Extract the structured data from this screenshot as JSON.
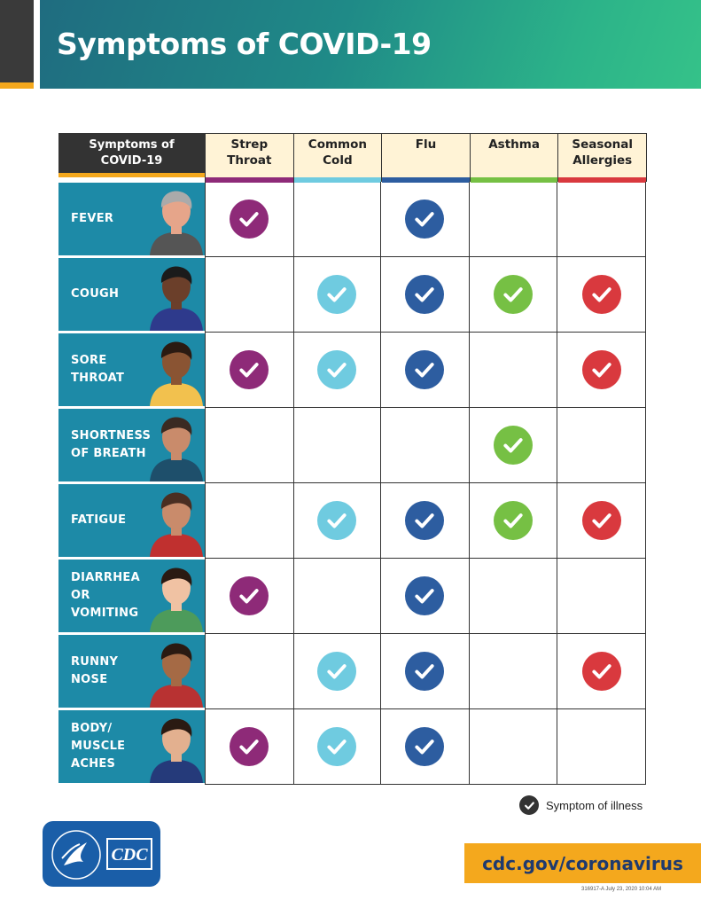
{
  "header": {
    "title": "Symptoms of COVID-19"
  },
  "table": {
    "row_header": [
      "Symptoms of",
      "COVID-19"
    ],
    "columns": [
      {
        "label": [
          "Strep",
          "Throat"
        ],
        "color": "#8e2a78"
      },
      {
        "label": [
          "Common",
          "Cold"
        ],
        "color": "#6fcbe0"
      },
      {
        "label": [
          "Flu",
          ""
        ],
        "color": "#2d5da0"
      },
      {
        "label": [
          "Asthma",
          ""
        ],
        "color": "#76c044"
      },
      {
        "label": [
          "Seasonal",
          "Allergies"
        ],
        "color": "#d9393e"
      }
    ],
    "rows": [
      {
        "symptom": [
          "FEVER"
        ],
        "checks": [
          true,
          false,
          true,
          false,
          false
        ],
        "icon": "person-with-thermometer-icon"
      },
      {
        "symptom": [
          "COUGH"
        ],
        "checks": [
          false,
          true,
          true,
          true,
          true
        ],
        "icon": "person-coughing-icon"
      },
      {
        "symptom": [
          "SORE",
          "THROAT"
        ],
        "checks": [
          true,
          true,
          true,
          false,
          true
        ],
        "icon": "person-sore-throat-icon"
      },
      {
        "symptom": [
          "SHORTNESS",
          "OF BREATH"
        ],
        "checks": [
          false,
          false,
          false,
          true,
          false
        ],
        "icon": "person-short-breath-icon"
      },
      {
        "symptom": [
          "FATIGUE"
        ],
        "checks": [
          false,
          true,
          true,
          true,
          true
        ],
        "icon": "person-fatigued-icon"
      },
      {
        "symptom": [
          "DIARRHEA",
          "OR",
          "VOMITING"
        ],
        "checks": [
          true,
          false,
          true,
          false,
          false
        ],
        "icon": "person-with-toilet-icon"
      },
      {
        "symptom": [
          "RUNNY",
          "NOSE"
        ],
        "checks": [
          false,
          true,
          true,
          false,
          true
        ],
        "icon": "person-runny-nose-icon"
      },
      {
        "symptom": [
          "BODY/",
          "MUSCLE",
          "ACHES"
        ],
        "checks": [
          true,
          true,
          true,
          false,
          false
        ],
        "icon": "person-body-aches-icon"
      }
    ]
  },
  "legend": {
    "label": "Symptom of illness"
  },
  "footer": {
    "url": "cdc.gov/coronavirus",
    "code": "316917-A July 23, 2020 10:04 AM",
    "logo_text": "CDC"
  },
  "colors": {
    "banner_start": "#1f6c80",
    "banner_end": "#35c289",
    "row_label_bg": "#1d8aa7",
    "accent": "#f4a81d",
    "header_bg": "#fff3d6"
  }
}
